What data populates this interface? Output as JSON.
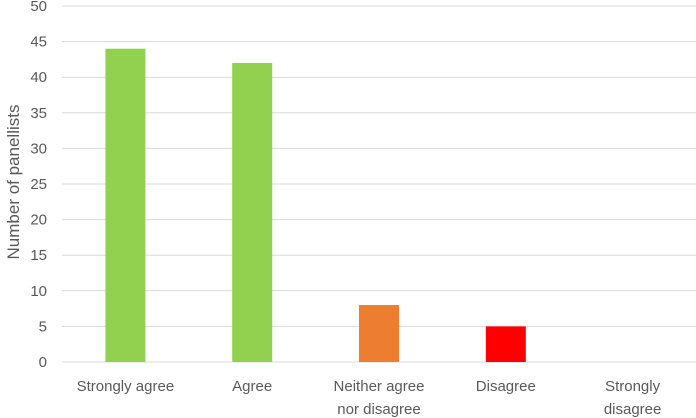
{
  "chart_data": {
    "type": "bar",
    "ylabel": "Number of panellists",
    "ylim": [
      0,
      50
    ],
    "ytick_step": 5,
    "grid": true,
    "categories": [
      [
        "Strongly agree"
      ],
      [
        "Agree"
      ],
      [
        "Neither agree",
        "nor disagree"
      ],
      [
        "Disagree"
      ],
      [
        "Strongly",
        "disagree"
      ]
    ],
    "values": [
      44,
      42,
      8,
      5,
      0
    ],
    "colors": [
      "#92d050",
      "#92d050",
      "#ed7d31",
      "#ff0000",
      "#92d050"
    ]
  }
}
